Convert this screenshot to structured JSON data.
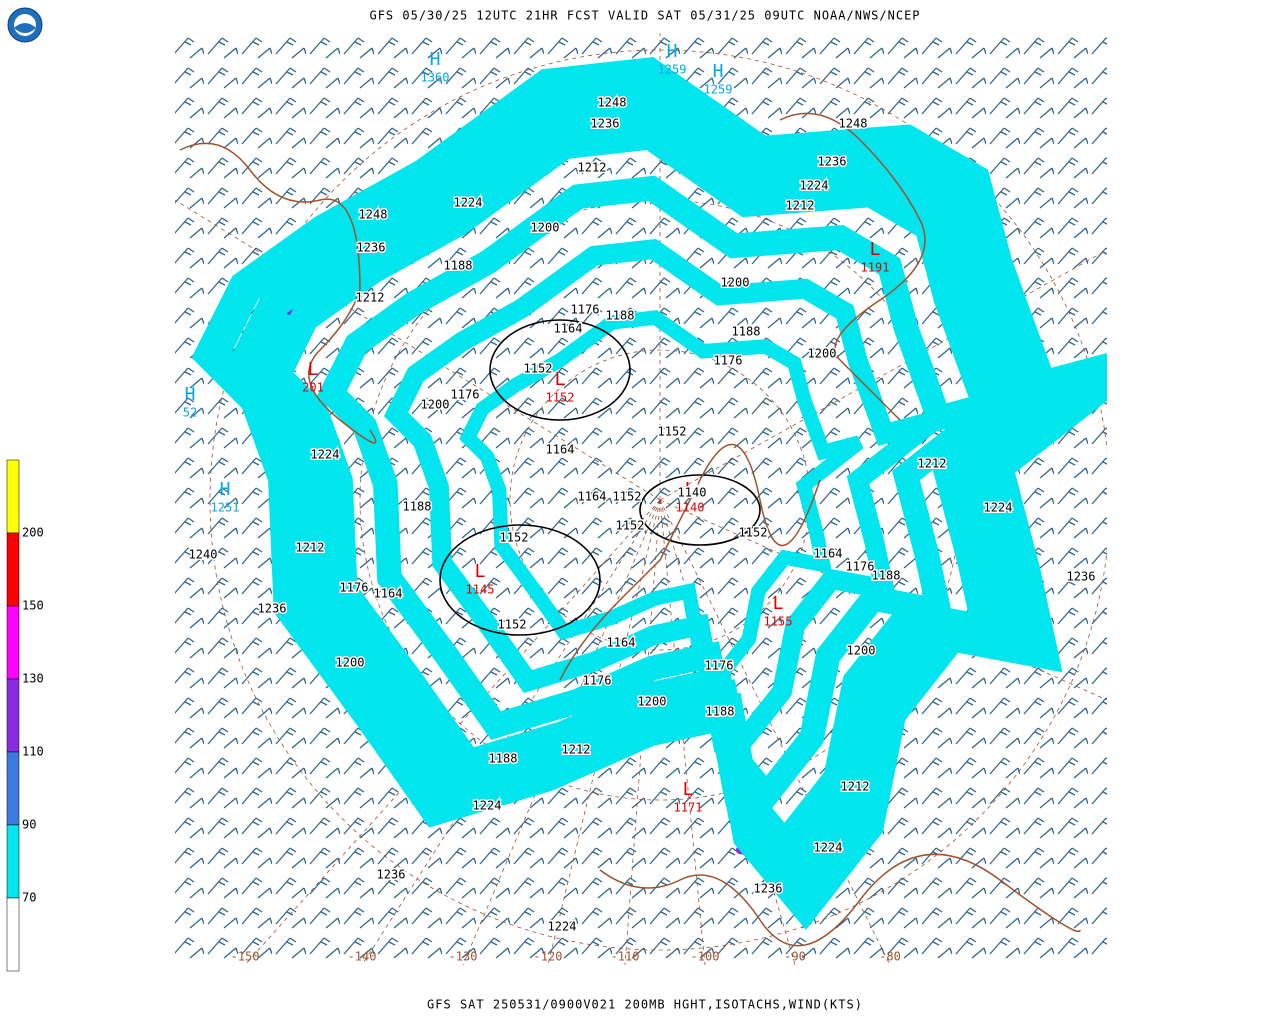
{
  "header": {
    "title": "GFS 05/30/25 12UTC 21HR FCST VALID SAT 05/31/25 09UTC NOAA/NWS/NCEP"
  },
  "footer": {
    "text": "GFS SAT 250531/0900V021 200MB HGHT,ISOTACHS,WIND(KTS)"
  },
  "colorbar": {
    "top_color": "#ffff00",
    "levels": [
      {
        "label": "200",
        "color": "#ff0000"
      },
      {
        "label": "150",
        "color": "#ff00ff"
      },
      {
        "label": "130",
        "color": "#8a2be2"
      },
      {
        "label": "110",
        "color": "#3a7be0"
      },
      {
        "label": "90",
        "color": "#00e5ee"
      },
      {
        "label": "70",
        "color": "#ffffff"
      }
    ]
  },
  "centers": [
    {
      "letter": "H",
      "value": "1360"
    },
    {
      "letter": "H",
      "value": "1259"
    },
    {
      "letter": "H",
      "value": "1259"
    },
    {
      "letter": "H",
      "value": "52"
    },
    {
      "letter": "H",
      "value": "1251"
    },
    {
      "letter": "L",
      "value": "201"
    },
    {
      "letter": "L",
      "value": "1152"
    },
    {
      "letter": "L",
      "value": "1140"
    },
    {
      "letter": "L",
      "value": "1145"
    },
    {
      "letter": "L",
      "value": "1155"
    },
    {
      "letter": "L",
      "value": "1191"
    },
    {
      "letter": "L",
      "value": "1171"
    }
  ],
  "contour_labels": [
    "1248",
    "1236",
    "1212",
    "1224",
    "1200",
    "1248",
    "1236",
    "1188",
    "1212",
    "1176",
    "1188",
    "1164",
    "1152",
    "1200",
    "1176",
    "1224",
    "1164",
    "1152",
    "1164",
    "1152",
    "1140",
    "1152",
    "1152",
    "1188",
    "1212",
    "1240",
    "1152",
    "1176",
    "1164",
    "1152",
    "1164",
    "1236",
    "1200",
    "1176",
    "1200",
    "1188",
    "1212",
    "1224",
    "1236",
    "1224",
    "1236",
    "1224",
    "1212",
    "1200",
    "1188",
    "1176",
    "1164",
    "1176",
    "1188",
    "1224",
    "1236",
    "1212",
    "1200",
    "1188",
    "1176",
    "1200",
    "1212",
    "1224",
    "1236",
    "1248"
  ],
  "longitudes": [
    "-150",
    "-140",
    "-130",
    "-120",
    "-110",
    "-100",
    "-90",
    "-80"
  ]
}
